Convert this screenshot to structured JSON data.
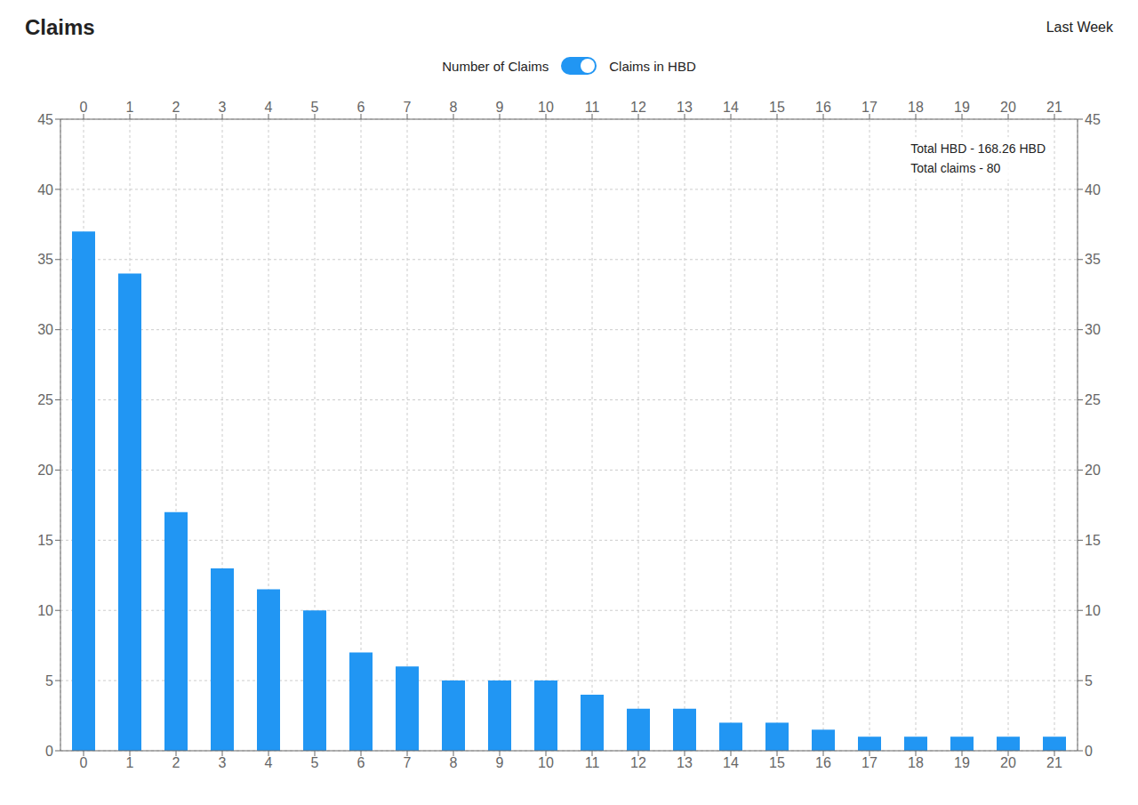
{
  "chart_data": {
    "type": "bar",
    "title": "Claims",
    "subtitle": "Last Week",
    "categories": [
      "0",
      "1",
      "2",
      "3",
      "4",
      "5",
      "6",
      "7",
      "8",
      "9",
      "10",
      "11",
      "12",
      "13",
      "14",
      "15",
      "16",
      "17",
      "18",
      "19",
      "20",
      "21"
    ],
    "values": [
      37,
      34,
      17,
      13,
      11.5,
      10,
      7,
      6,
      5,
      5,
      5,
      4,
      3,
      3,
      2,
      2,
      1.5,
      1,
      1,
      1,
      1,
      1
    ],
    "color": "#2196F3",
    "ylim": [
      0,
      45
    ],
    "yticks": [
      0,
      5,
      10,
      15,
      20,
      25,
      30,
      35,
      40,
      45
    ],
    "grid": true,
    "annotations": [
      "Number of Claims",
      "Claims in HBD",
      "Total HBD - 168.26 HBD",
      "Total claims - 80"
    ]
  }
}
